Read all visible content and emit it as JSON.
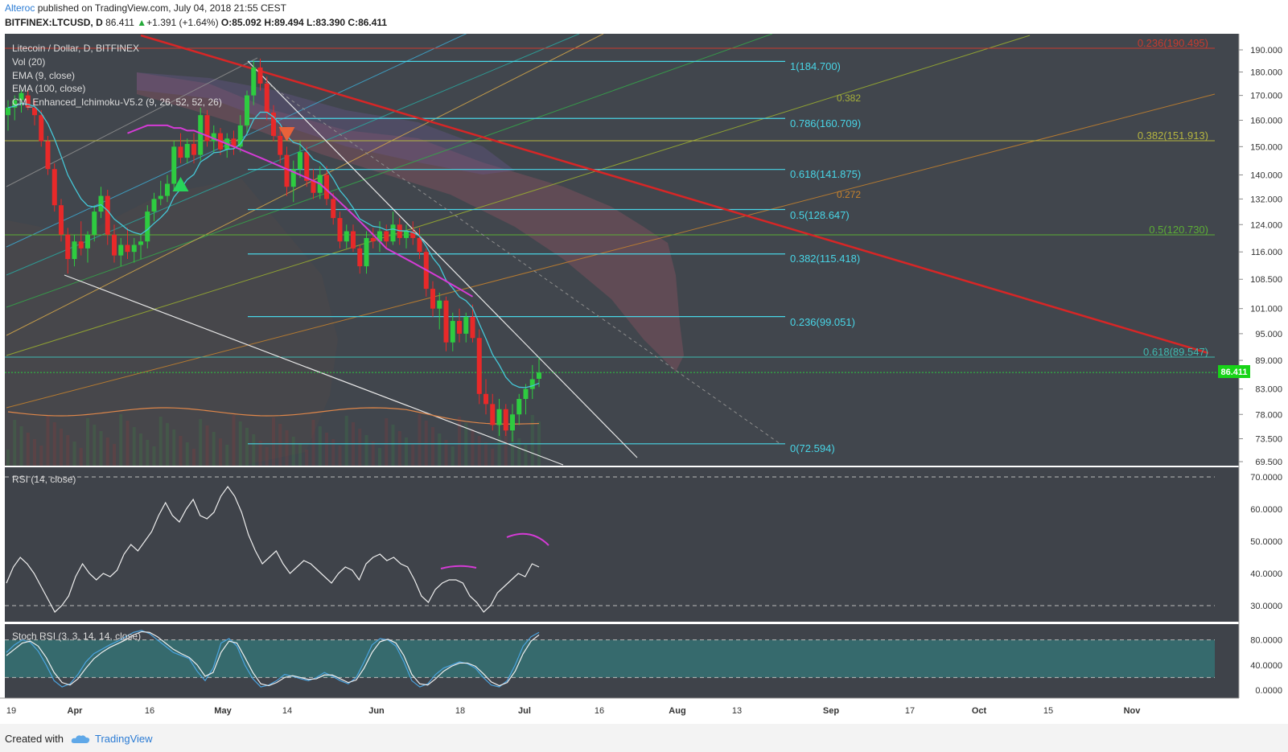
{
  "header": {
    "user": "Alteroc",
    "published": "published on TradingView.com, July 04, 2018 21:55 CEST",
    "symbol_line_prefix": "BITFINEX:LTCUSD, D",
    "price": "86.411",
    "change": "+1.391 (+1.64%)",
    "ohlc_open": "O:85.092",
    "ohlc_high": "H:89.494",
    "ohlc_low": "L:83.390",
    "ohlc_close": "C:86.411"
  },
  "legend": {
    "title": "Litecoin / Dollar, D, BITFINEX",
    "vol": "Vol (20)",
    "ema9": "EMA (9, close)",
    "ema100": "EMA (100, close)",
    "ichimoku": "CM_Enhanced_Ichimoku-V5.2 (9, 26, 52, 52, 26)",
    "rsi": "RSI (14, close)",
    "stoch": "Stoch RSI (3, 3, 14, 14, close)"
  },
  "colors": {
    "panel_bg": "#41464d",
    "axis_bg": "#ffffff",
    "up": "#2ecc40",
    "down": "#e82929",
    "ema9": "#45c8d8",
    "ema100": "#d53bd6",
    "fib": "#48d5e6",
    "trend_red": "#d72626",
    "price_tag": "#17d417"
  },
  "price_axis": [
    "190.000",
    "180.000",
    "170.000",
    "160.000",
    "150.000",
    "140.000",
    "132.000",
    "124.000",
    "116.000",
    "108.500",
    "101.000",
    "95.000",
    "89.000",
    "83.000",
    "78.000",
    "73.500",
    "69.500"
  ],
  "current_price_tag": "86.411",
  "rsi_axis": [
    "70.0000",
    "60.0000",
    "50.0000",
    "40.0000",
    "30.0000"
  ],
  "stoch_axis": [
    "80.0000",
    "40.0000",
    "0.0000"
  ],
  "time_axis": [
    "19",
    "Apr",
    "16",
    "May",
    "14",
    "Jun",
    "18",
    "Jul",
    "16",
    "Aug",
    "13",
    "Sep",
    "17",
    "Oct",
    "15",
    "Nov"
  ],
  "fib_labels": {
    "f1": "1(184.700)",
    "f786": "0.786(160.709)",
    "f618": "0.618(141.875)",
    "f5": "0.5(128.647)",
    "f382": "0.382(115.418)",
    "f236": "0.236(99.051)",
    "f0": "0(72.594)"
  },
  "right_fib_labels": {
    "r236": "0.236(190.495)",
    "r382": "0.382(151.913)",
    "r5": "0.5(120.730)",
    "r618": "0.618(89.547)"
  },
  "channel_labels": {
    "c382": "0.382",
    "c272": "0.272"
  },
  "chart_data": [
    {
      "type": "candlestick",
      "title": "Litecoin / Dollar, D, BITFINEX",
      "ylim": [
        69.5,
        190
      ],
      "y_scale": "log",
      "candles_ohlc": [
        [
          162,
          168,
          156,
          165
        ],
        [
          165,
          170,
          160,
          168
        ],
        [
          168,
          172,
          163,
          171
        ],
        [
          170,
          172,
          164,
          165
        ],
        [
          165,
          168,
          158,
          162
        ],
        [
          162,
          164,
          150,
          152
        ],
        [
          152,
          154,
          140,
          142
        ],
        [
          142,
          144,
          128,
          130
        ],
        [
          130,
          132,
          119,
          121
        ],
        [
          121,
          123,
          110,
          114
        ],
        [
          114,
          121,
          112,
          119
        ],
        [
          119,
          125,
          115,
          117
        ],
        [
          117,
          122,
          113,
          121
        ],
        [
          121,
          130,
          119,
          128
        ],
        [
          128,
          136,
          126,
          133
        ],
        [
          133,
          135,
          118,
          121
        ],
        [
          121,
          124,
          113,
          115
        ],
        [
          115,
          120,
          112,
          118
        ],
        [
          118,
          123,
          114,
          116
        ],
        [
          116,
          120,
          113,
          118
        ],
        [
          118,
          121,
          114,
          119
        ],
        [
          119,
          130,
          117,
          128
        ],
        [
          128,
          134,
          125,
          132
        ],
        [
          132,
          138,
          130,
          133
        ],
        [
          133,
          140,
          131,
          137
        ],
        [
          137,
          152,
          135,
          150
        ],
        [
          150,
          155,
          144,
          146
        ],
        [
          146,
          153,
          144,
          151
        ],
        [
          151,
          155,
          144,
          147
        ],
        [
          147,
          165,
          145,
          162
        ],
        [
          162,
          164,
          150,
          152
        ],
        [
          152,
          158,
          148,
          155
        ],
        [
          155,
          157,
          147,
          149
        ],
        [
          149,
          155,
          146,
          153
        ],
        [
          153,
          156,
          147,
          150
        ],
        [
          150,
          162,
          148,
          158
        ],
        [
          158,
          172,
          155,
          170
        ],
        [
          170,
          185,
          166,
          182
        ],
        [
          182,
          186,
          172,
          175
        ],
        [
          175,
          178,
          160,
          163
        ],
        [
          163,
          166,
          152,
          154
        ],
        [
          154,
          158,
          144,
          147
        ],
        [
          147,
          150,
          133,
          136
        ],
        [
          136,
          145,
          131,
          142
        ],
        [
          142,
          152,
          139,
          148
        ],
        [
          148,
          150,
          136,
          138
        ],
        [
          138,
          142,
          132,
          134
        ],
        [
          134,
          143,
          132,
          140
        ],
        [
          140,
          143,
          130,
          132
        ],
        [
          132,
          134,
          124,
          126
        ],
        [
          126,
          128,
          117,
          119
        ],
        [
          119,
          124,
          117,
          122
        ],
        [
          122,
          124,
          116,
          117
        ],
        [
          117,
          118,
          110,
          112
        ],
        [
          112,
          122,
          110,
          120
        ],
        [
          120,
          123,
          117,
          119
        ],
        [
          119,
          125,
          116,
          122
        ],
        [
          122,
          124,
          117,
          119
        ],
        [
          119,
          128,
          118,
          124
        ],
        [
          124,
          126,
          118,
          120
        ],
        [
          120,
          124,
          117,
          122
        ],
        [
          122,
          125,
          118,
          120
        ],
        [
          120,
          123,
          114,
          116
        ],
        [
          116,
          117,
          104,
          106
        ],
        [
          106,
          108,
          99,
          101
        ],
        [
          101,
          105,
          96,
          103
        ],
        [
          103,
          104,
          91,
          93
        ],
        [
          93,
          100,
          91,
          98
        ],
        [
          98,
          101,
          93,
          95
        ],
        [
          95,
          100,
          93,
          99
        ],
        [
          99,
          102,
          93,
          94
        ],
        [
          94,
          96,
          80,
          82
        ],
        [
          82,
          85,
          78,
          80
        ],
        [
          80,
          82,
          75,
          76
        ],
        [
          76,
          81,
          74,
          79
        ],
        [
          79,
          80,
          74,
          75
        ],
        [
          75,
          80,
          73,
          78
        ],
        [
          78,
          82,
          76,
          81
        ],
        [
          81,
          84,
          78,
          83
        ],
        [
          83,
          88,
          81,
          85
        ],
        [
          85.092,
          89.494,
          83.39,
          86.411
        ]
      ],
      "ema9_recent": [
        119,
        116,
        113,
        111,
        108,
        105,
        102,
        100,
        98,
        96,
        94,
        92,
        89,
        86,
        84,
        82,
        81,
        80.5,
        80.5,
        81,
        82
      ],
      "ema100_recent": [
        158,
        157,
        156,
        155,
        153,
        151,
        149,
        147,
        145,
        143,
        141,
        139,
        137,
        135,
        133,
        131,
        129,
        127,
        125,
        123,
        121
      ],
      "fibonacci_retracement": [
        {
          "level": 1,
          "price": 184.7
        },
        {
          "level": 0.786,
          "price": 160.709
        },
        {
          "level": 0.618,
          "price": 141.875
        },
        {
          "level": 0.5,
          "price": 128.647
        },
        {
          "level": 0.382,
          "price": 115.418
        },
        {
          "level": 0.236,
          "price": 99.051
        },
        {
          "level": 0,
          "price": 72.594
        }
      ],
      "long_term_fib": [
        {
          "level": 0.236,
          "price": 190.495
        },
        {
          "level": 0.382,
          "price": 151.913
        },
        {
          "level": 0.5,
          "price": 120.73
        },
        {
          "level": 0.618,
          "price": 89.547
        }
      ],
      "last_price": 86.411
    },
    {
      "type": "line",
      "title": "RSI (14, close)",
      "ylim": [
        25,
        70
      ],
      "guides": [
        70,
        30
      ],
      "values": [
        37,
        42,
        45,
        43,
        40,
        36,
        32,
        28,
        30,
        33,
        39,
        43,
        40,
        38,
        40,
        39,
        41,
        46,
        49,
        47,
        50,
        53,
        58,
        62,
        58,
        56,
        60,
        63,
        58,
        57,
        59,
        64,
        67,
        64,
        59,
        52,
        47,
        43,
        45,
        47,
        43,
        40,
        42,
        44,
        43,
        41,
        39,
        37,
        40,
        42,
        41,
        38,
        43,
        45,
        46,
        44,
        45,
        43,
        42,
        38,
        33,
        31,
        35,
        37,
        38,
        38,
        37,
        33,
        31,
        28,
        30,
        34,
        36,
        38,
        40,
        39,
        43,
        42
      ]
    },
    {
      "type": "line",
      "title": "Stoch RSI (3, 3, 14, 14, close)",
      "ylim": [
        0,
        100
      ],
      "band": [
        20,
        80
      ],
      "series": [
        {
          "values": [
            60,
            72,
            80,
            76,
            62,
            40,
            15,
            5,
            10,
            25,
            45,
            58,
            65,
            72,
            78,
            85,
            92,
            95,
            90,
            80,
            70,
            60,
            55,
            50,
            30,
            15,
            35,
            75,
            82,
            70,
            40,
            18,
            5,
            8,
            15,
            25,
            22,
            18,
            15,
            20,
            28,
            22,
            15,
            10,
            20,
            45,
            72,
            82,
            80,
            70,
            45,
            15,
            5,
            10,
            25,
            35,
            40,
            45,
            42,
            35,
            20,
            8,
            5,
            15,
            40,
            70,
            85,
            92
          ]
        },
        {
          "values": [
            55,
            65,
            75,
            78,
            70,
            52,
            28,
            12,
            8,
            18,
            35,
            50,
            60,
            68,
            74,
            80,
            88,
            93,
            92,
            85,
            75,
            65,
            58,
            52,
            40,
            22,
            28,
            60,
            78,
            75,
            52,
            28,
            10,
            7,
            12,
            20,
            23,
            20,
            17,
            18,
            24,
            24,
            18,
            12,
            16,
            35,
            60,
            77,
            81,
            75,
            55,
            25,
            10,
            8,
            18,
            30,
            38,
            43,
            43,
            38,
            26,
            13,
            7,
            12,
            30,
            58,
            78,
            88
          ]
        }
      ]
    }
  ]
}
